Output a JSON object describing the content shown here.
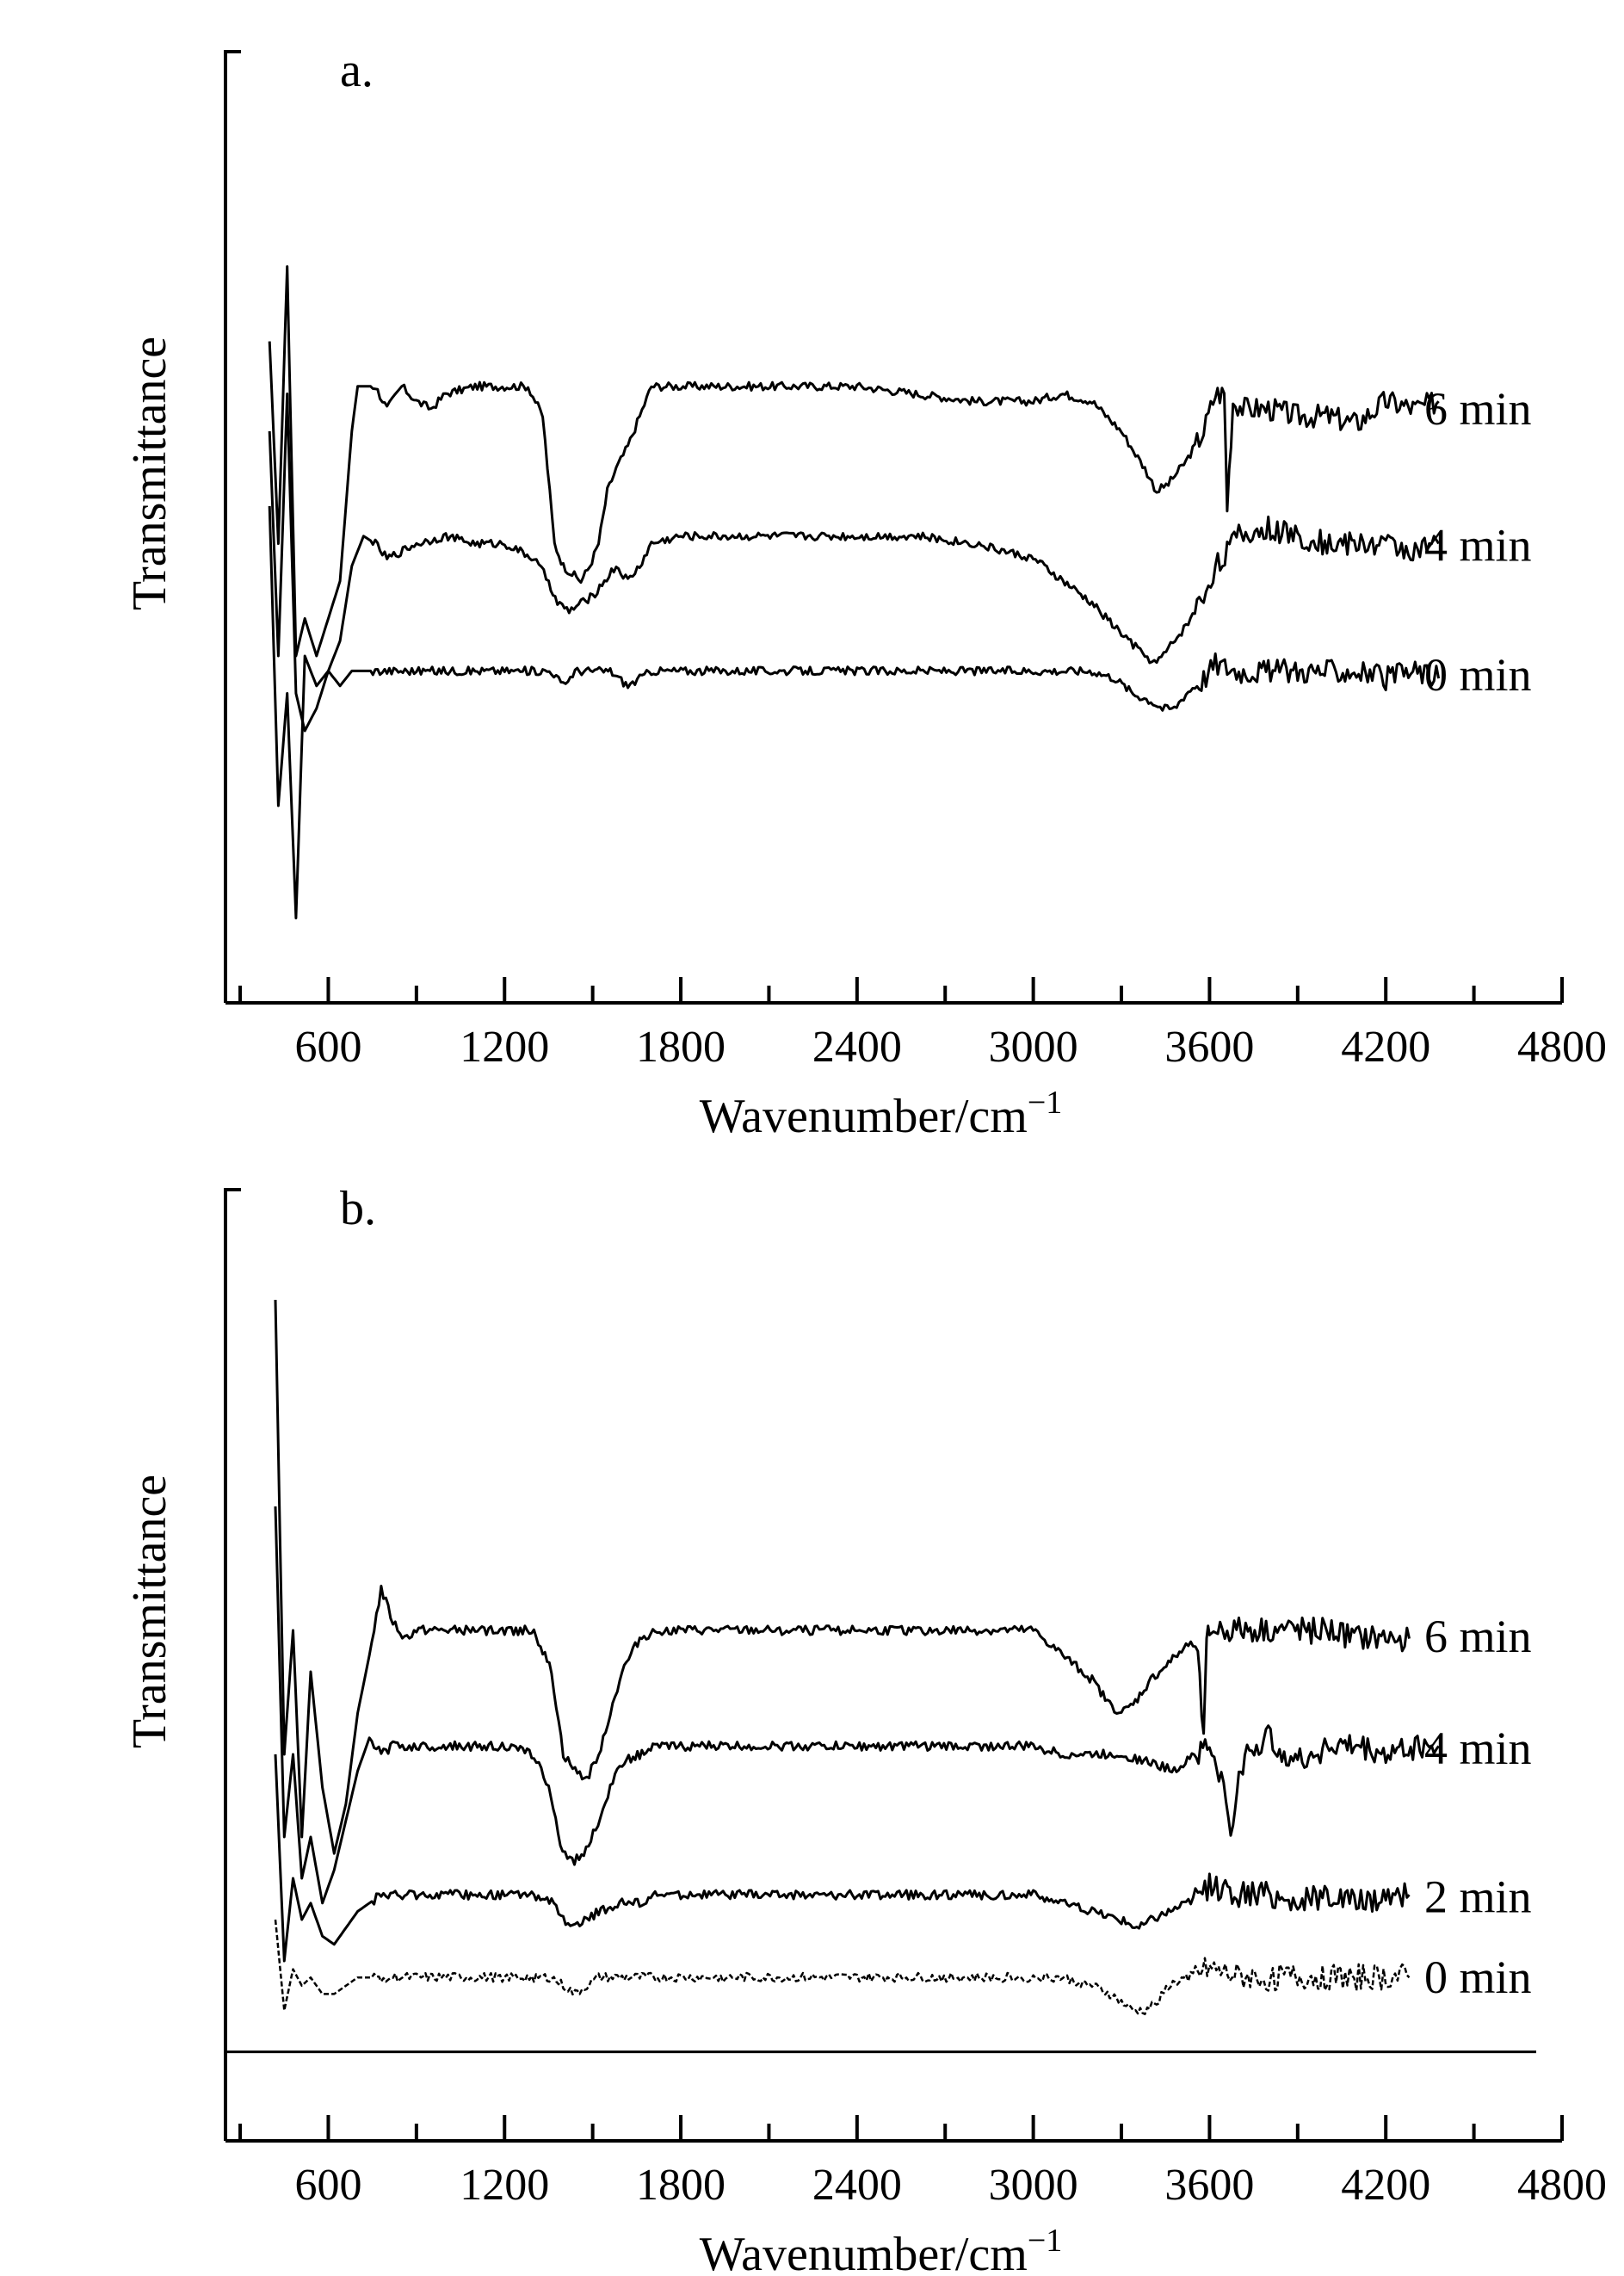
{
  "chart_data": [
    {
      "type": "line",
      "panel_label": "a.",
      "xlabel": "Wavenumber/cm",
      "xlabel_sup": "−1",
      "ylabel": "Transmittance",
      "xlim": [
        250,
        4800
      ],
      "ylim": [
        0,
        100
      ],
      "x_ticks": [
        600,
        1200,
        1800,
        2400,
        3000,
        3600,
        4200,
        4800
      ],
      "x_tick_labels": [
        "600",
        "1200",
        "1800",
        "2400",
        "3000",
        "3600",
        "4200",
        "4800"
      ],
      "grid": false,
      "legend": "inline-right",
      "series": [
        {
          "name": "6 min",
          "x": [
            400,
            430,
            460,
            490,
            520,
            560,
            600,
            640,
            680,
            700,
            720,
            760,
            800,
            850,
            900,
            950,
            1000,
            1100,
            1200,
            1280,
            1330,
            1370,
            1400,
            1430,
            1460,
            1490,
            1520,
            1550,
            1580,
            1620,
            1660,
            1700,
            1750,
            1800,
            2000,
            2200,
            2400,
            2600,
            2800,
            3000,
            3100,
            3200,
            3300,
            3380,
            3420,
            3460,
            3520,
            3580,
            3620,
            3650,
            3660,
            3680,
            3720,
            3800,
            3900,
            4000,
            4100,
            4200,
            4300,
            4380
          ],
          "y": [
            82,
            55,
            92,
            40,
            45,
            40,
            45,
            50,
            70,
            76,
            76,
            76,
            73,
            76,
            74,
            73,
            75,
            76,
            76,
            76,
            72,
            55,
            52,
            51,
            50,
            52,
            55,
            62,
            65,
            68,
            72,
            76,
            76,
            76,
            76,
            76,
            76,
            75,
            74,
            74,
            75,
            74,
            70,
            65,
            62,
            63,
            66,
            70,
            75,
            75,
            60,
            74,
            73,
            73,
            72,
            72,
            71,
            74,
            73,
            74
          ]
        },
        {
          "name": "4 min",
          "x": [
            400,
            430,
            460,
            490,
            520,
            560,
            600,
            640,
            680,
            720,
            760,
            800,
            900,
            1000,
            1100,
            1200,
            1300,
            1350,
            1380,
            1420,
            1460,
            1500,
            1540,
            1580,
            1620,
            1660,
            1700,
            1800,
            2000,
            2200,
            2400,
            2600,
            2800,
            2900,
            3000,
            3100,
            3200,
            3300,
            3380,
            3420,
            3460,
            3520,
            3580,
            3620,
            3700,
            3800,
            3900,
            4000,
            4100,
            4200,
            4300,
            4380
          ],
          "y": [
            70,
            40,
            75,
            35,
            30,
            33,
            38,
            42,
            52,
            56,
            55,
            53,
            55,
            56,
            55,
            55,
            53,
            50,
            47,
            46,
            47,
            48,
            50,
            52,
            50,
            52,
            55,
            56,
            56,
            56,
            56,
            56,
            55,
            54,
            53,
            50,
            47,
            43,
            40,
            39,
            41,
            44,
            48,
            52,
            56,
            57,
            56,
            55,
            55,
            55,
            54,
            55
          ]
        },
        {
          "name": "0 min",
          "x": [
            400,
            430,
            460,
            490,
            520,
            560,
            600,
            640,
            680,
            720,
            760,
            800,
            900,
            1000,
            1100,
            1200,
            1300,
            1360,
            1400,
            1440,
            1500,
            1560,
            1620,
            1660,
            1700,
            1800,
            2000,
            2200,
            2400,
            2600,
            2800,
            3000,
            3200,
            3280,
            3340,
            3400,
            3440,
            3480,
            3520,
            3580,
            3620,
            3700,
            3800,
            3900,
            4000,
            4100,
            4200,
            4300,
            4380
          ],
          "y": [
            60,
            20,
            35,
            5,
            40,
            36,
            38,
            36,
            38,
            38,
            38,
            38,
            38,
            38,
            38,
            38,
            38,
            38,
            36,
            38,
            38,
            38,
            36,
            37,
            38,
            38,
            38,
            38,
            38,
            38,
            38,
            38,
            38,
            37,
            35,
            34,
            33,
            33,
            35,
            37,
            39,
            38,
            38,
            38,
            38,
            38,
            37,
            38,
            37
          ]
        }
      ]
    },
    {
      "type": "line",
      "panel_label": "b.",
      "xlabel": "Wavenumber/cm",
      "xlabel_sup": "−1",
      "ylabel": "Transmittance",
      "xlim": [
        250,
        4800
      ],
      "ylim": [
        0,
        100
      ],
      "x_ticks": [
        600,
        1200,
        1800,
        2400,
        3000,
        3600,
        4200,
        4800
      ],
      "x_tick_labels": [
        "600",
        "1200",
        "1800",
        "2400",
        "3000",
        "3600",
        "4200",
        "4800"
      ],
      "grid": false,
      "legend": "inline-right",
      "series": [
        {
          "name": "6 min",
          "x": [
            420,
            450,
            480,
            510,
            540,
            580,
            620,
            660,
            700,
            740,
            780,
            820,
            860,
            900,
            1000,
            1100,
            1200,
            1300,
            1360,
            1400,
            1440,
            1480,
            1520,
            1560,
            1600,
            1660,
            1720,
            1800,
            2000,
            2200,
            2400,
            2600,
            2800,
            3000,
            3100,
            3200,
            3260,
            3300,
            3340,
            3400,
            3460,
            3520,
            3560,
            3580,
            3590,
            3600,
            3620,
            3700,
            3800,
            3900,
            4000,
            4100,
            4200,
            4280
          ],
          "y": [
            95,
            40,
            55,
            30,
            50,
            36,
            28,
            34,
            45,
            52,
            60,
            56,
            54,
            55,
            55,
            55,
            55,
            55,
            50,
            40,
            38,
            37,
            40,
            45,
            50,
            54,
            55,
            55,
            55,
            55,
            55,
            55,
            55,
            55,
            52,
            49,
            46,
            45,
            46,
            49,
            51,
            53,
            54,
            41,
            53,
            55,
            55,
            55,
            55,
            55,
            55,
            54,
            54,
            54
          ]
        },
        {
          "name": "4 min",
          "x": [
            420,
            450,
            480,
            510,
            540,
            580,
            620,
            660,
            700,
            740,
            780,
            820,
            900,
            1000,
            1100,
            1200,
            1300,
            1350,
            1390,
            1430,
            1470,
            1510,
            1560,
            1600,
            1660,
            1720,
            1800,
            2000,
            2200,
            2400,
            2600,
            2800,
            3000,
            3100,
            3200,
            3300,
            3400,
            3480,
            3540,
            3600,
            3640,
            3680,
            3700,
            3720,
            3760,
            3800,
            3900,
            4000,
            4100,
            4200,
            4300,
            4380
          ],
          "y": [
            70,
            30,
            40,
            25,
            30,
            22,
            26,
            32,
            38,
            42,
            40,
            41,
            41,
            41,
            41,
            41,
            40,
            36,
            29,
            27,
            28,
            31,
            36,
            39,
            40,
            41,
            41,
            41,
            41,
            41,
            41,
            41,
            41,
            40,
            40,
            40,
            39,
            38,
            40,
            41,
            37,
            30,
            37,
            40,
            41,
            42,
            39,
            41,
            41,
            40,
            41,
            41
          ]
        },
        {
          "name": "2 min",
          "x": [
            420,
            450,
            480,
            510,
            540,
            580,
            620,
            660,
            700,
            740,
            780,
            820,
            900,
            1000,
            1100,
            1200,
            1300,
            1360,
            1400,
            1440,
            1480,
            1520,
            1600,
            1660,
            1720,
            1800,
            2000,
            2200,
            2400,
            2600,
            2800,
            3000,
            3100,
            3200,
            3300,
            3360,
            3400,
            3460,
            3520,
            3560,
            3600,
            3700,
            3800,
            3900,
            4000,
            4100,
            4200,
            4280
          ],
          "y": [
            40,
            15,
            25,
            20,
            22,
            18,
            17,
            19,
            21,
            22,
            23,
            23,
            23,
            23,
            23,
            23,
            23,
            22,
            20,
            19,
            20,
            21,
            22,
            22,
            23,
            23,
            23,
            23,
            23,
            23,
            23,
            23,
            22,
            21,
            20,
            19,
            20,
            21,
            22,
            23,
            24,
            23,
            23,
            22,
            23,
            22,
            23,
            23
          ]
        },
        {
          "name": "0 min",
          "x": [
            420,
            450,
            480,
            510,
            540,
            580,
            620,
            660,
            700,
            740,
            780,
            820,
            900,
            1000,
            1100,
            1200,
            1300,
            1360,
            1400,
            1440,
            1480,
            1520,
            1600,
            1660,
            1720,
            1800,
            2000,
            2200,
            2400,
            2600,
            2800,
            3000,
            3100,
            3200,
            3260,
            3300,
            3340,
            3380,
            3420,
            3460,
            3520,
            3600,
            3700,
            3800,
            3900,
            4000,
            4100,
            4200,
            4280
          ],
          "y": [
            20,
            9,
            14,
            12,
            13,
            11,
            11,
            12,
            13,
            13,
            13,
            13,
            13,
            13,
            13,
            13,
            13,
            13,
            12,
            11,
            12,
            13,
            13,
            13,
            13,
            13,
            13,
            13,
            13,
            13,
            13,
            13,
            13,
            12,
            11,
            10,
            9,
            9,
            10,
            12,
            13,
            14,
            13,
            13,
            13,
            13,
            13,
            13,
            13
          ]
        }
      ]
    }
  ]
}
